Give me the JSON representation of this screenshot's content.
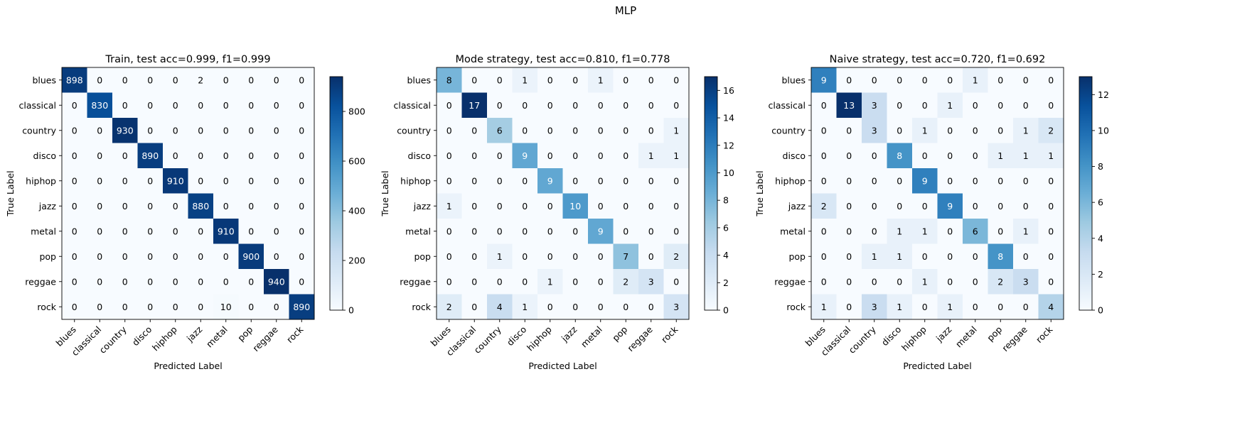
{
  "figure": {
    "suptitle": "MLP"
  },
  "colorscale": {
    "low": "#f7fbff",
    "high": "#08306b",
    "stops": [
      "#f7fbff",
      "#deebf7",
      "#c6dbef",
      "#9ecae1",
      "#6baed6",
      "#4292c6",
      "#2171b5",
      "#08519c",
      "#08306b"
    ]
  },
  "chart_data": [
    {
      "type": "heatmap",
      "title": "Train, test acc=0.999, f1=0.999",
      "xlabel": "Predicted Label",
      "ylabel": "True Label",
      "categories": [
        "blues",
        "classical",
        "country",
        "disco",
        "hiphop",
        "jazz",
        "metal",
        "pop",
        "reggae",
        "rock"
      ],
      "matrix": [
        [
          898,
          0,
          0,
          0,
          0,
          2,
          0,
          0,
          0,
          0
        ],
        [
          0,
          830,
          0,
          0,
          0,
          0,
          0,
          0,
          0,
          0
        ],
        [
          0,
          0,
          930,
          0,
          0,
          0,
          0,
          0,
          0,
          0
        ],
        [
          0,
          0,
          0,
          890,
          0,
          0,
          0,
          0,
          0,
          0
        ],
        [
          0,
          0,
          0,
          0,
          910,
          0,
          0,
          0,
          0,
          0
        ],
        [
          0,
          0,
          0,
          0,
          0,
          880,
          0,
          0,
          0,
          0
        ],
        [
          0,
          0,
          0,
          0,
          0,
          0,
          910,
          0,
          0,
          0
        ],
        [
          0,
          0,
          0,
          0,
          0,
          0,
          0,
          900,
          0,
          0
        ],
        [
          0,
          0,
          0,
          0,
          0,
          0,
          0,
          0,
          940,
          0
        ],
        [
          0,
          0,
          0,
          0,
          0,
          0,
          10,
          0,
          0,
          890
        ]
      ],
      "colorbar": {
        "min": 0,
        "max": 940,
        "ticks": [
          0,
          200,
          400,
          600,
          800
        ]
      }
    },
    {
      "type": "heatmap",
      "title": "Mode strategy, test acc=0.810, f1=0.778",
      "xlabel": "Predicted Label",
      "ylabel": "True Label",
      "categories": [
        "blues",
        "classical",
        "country",
        "disco",
        "hiphop",
        "jazz",
        "metal",
        "pop",
        "reggae",
        "rock"
      ],
      "matrix": [
        [
          8,
          0,
          0,
          1,
          0,
          0,
          1,
          0,
          0,
          0
        ],
        [
          0,
          17,
          0,
          0,
          0,
          0,
          0,
          0,
          0,
          0
        ],
        [
          0,
          0,
          6,
          0,
          0,
          0,
          0,
          0,
          0,
          1
        ],
        [
          0,
          0,
          0,
          9,
          0,
          0,
          0,
          0,
          1,
          1
        ],
        [
          0,
          0,
          0,
          0,
          9,
          0,
          0,
          0,
          0,
          0
        ],
        [
          1,
          0,
          0,
          0,
          0,
          10,
          0,
          0,
          0,
          0
        ],
        [
          0,
          0,
          0,
          0,
          0,
          0,
          9,
          0,
          0,
          0
        ],
        [
          0,
          0,
          1,
          0,
          0,
          0,
          0,
          7,
          0,
          2
        ],
        [
          0,
          0,
          0,
          0,
          1,
          0,
          0,
          2,
          3,
          0
        ],
        [
          2,
          0,
          4,
          1,
          0,
          0,
          0,
          0,
          0,
          3
        ]
      ],
      "colorbar": {
        "min": 0,
        "max": 17,
        "ticks": [
          0,
          2,
          4,
          6,
          8,
          10,
          12,
          14,
          16
        ]
      }
    },
    {
      "type": "heatmap",
      "title": "Naive strategy, test acc=0.720, f1=0.692",
      "xlabel": "Predicted Label",
      "ylabel": "True Label",
      "categories": [
        "blues",
        "classical",
        "country",
        "disco",
        "hiphop",
        "jazz",
        "metal",
        "pop",
        "reggae",
        "rock"
      ],
      "matrix": [
        [
          9,
          0,
          0,
          0,
          0,
          0,
          1,
          0,
          0,
          0
        ],
        [
          0,
          13,
          3,
          0,
          0,
          1,
          0,
          0,
          0,
          0
        ],
        [
          0,
          0,
          3,
          0,
          1,
          0,
          0,
          0,
          1,
          2
        ],
        [
          0,
          0,
          0,
          8,
          0,
          0,
          0,
          1,
          1,
          1
        ],
        [
          0,
          0,
          0,
          0,
          9,
          0,
          0,
          0,
          0,
          0
        ],
        [
          2,
          0,
          0,
          0,
          0,
          9,
          0,
          0,
          0,
          0
        ],
        [
          0,
          0,
          0,
          1,
          1,
          0,
          6,
          0,
          1,
          0
        ],
        [
          0,
          0,
          1,
          1,
          0,
          0,
          0,
          8,
          0,
          0
        ],
        [
          0,
          0,
          0,
          0,
          1,
          0,
          0,
          2,
          3,
          0
        ],
        [
          1,
          0,
          3,
          1,
          0,
          1,
          0,
          0,
          0,
          4
        ]
      ],
      "colorbar": {
        "min": 0,
        "max": 13,
        "ticks": [
          0,
          2,
          4,
          6,
          8,
          10,
          12
        ]
      }
    }
  ]
}
